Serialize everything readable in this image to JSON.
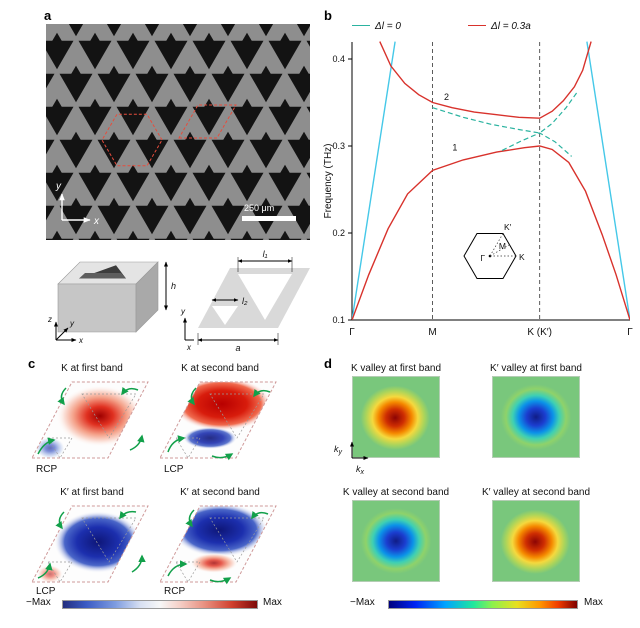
{
  "panels": {
    "a": "a",
    "b": "b",
    "c": "c",
    "d": "d"
  },
  "panel_a": {
    "scale_bar_label": "250 μm",
    "axis_x": "x",
    "axis_y": "y",
    "box": {
      "h": "h",
      "x": "x",
      "y": "y",
      "z": "z"
    },
    "cell": {
      "l1": "l₁",
      "l2": "l₂",
      "a": "a",
      "x": "x",
      "y": "y"
    }
  },
  "chart_data": {
    "type": "line",
    "title": "",
    "xlabel": "",
    "ylabel": "Frequency (THz)",
    "ylim": [
      0.1,
      0.42
    ],
    "y_ticks": [
      0.1,
      0.2,
      0.3,
      0.4
    ],
    "x_ticks": [
      {
        "pos": 0,
        "label": "Γ"
      },
      {
        "pos": 0.29,
        "label": "M",
        "dashed": true
      },
      {
        "pos": 0.675,
        "label": "K (K′)",
        "dashed": true
      },
      {
        "pos": 1,
        "label": "Γ"
      }
    ],
    "legend": [
      {
        "label": "Δl = 0",
        "color": "#2bb3a0",
        "style": "dashed"
      },
      {
        "label": "Δl = 0.3a",
        "color": "#d8322c",
        "style": "solid"
      }
    ],
    "series": [
      {
        "name": "light-line-left",
        "color": "#45c8e8",
        "style": "solid",
        "points": [
          [
            0,
            0.1
          ],
          [
            0.155,
            0.42
          ]
        ]
      },
      {
        "name": "light-line-right",
        "color": "#45c8e8",
        "style": "solid",
        "points": [
          [
            1,
            0.1
          ],
          [
            0.845,
            0.42
          ]
        ]
      },
      {
        "name": "band1-dl-0.3a",
        "color": "#d8322c",
        "style": "solid",
        "points": [
          [
            0,
            0.1
          ],
          [
            0.06,
            0.152
          ],
          [
            0.13,
            0.205
          ],
          [
            0.2,
            0.245
          ],
          [
            0.29,
            0.272
          ],
          [
            0.4,
            0.284
          ],
          [
            0.52,
            0.293
          ],
          [
            0.62,
            0.298
          ],
          [
            0.675,
            0.3
          ],
          [
            0.72,
            0.296
          ],
          [
            0.78,
            0.281
          ],
          [
            0.84,
            0.248
          ],
          [
            0.9,
            0.198
          ],
          [
            0.95,
            0.152
          ],
          [
            1,
            0.1
          ]
        ]
      },
      {
        "name": "band2-dl-0.3a",
        "color": "#d8322c",
        "style": "solid",
        "points": [
          [
            0.1,
            0.42
          ],
          [
            0.14,
            0.392
          ],
          [
            0.19,
            0.372
          ],
          [
            0.24,
            0.359
          ],
          [
            0.29,
            0.35
          ],
          [
            0.36,
            0.344
          ],
          [
            0.44,
            0.339
          ],
          [
            0.52,
            0.336
          ],
          [
            0.6,
            0.333
          ],
          [
            0.675,
            0.332
          ],
          [
            0.72,
            0.34
          ],
          [
            0.76,
            0.352
          ],
          [
            0.8,
            0.368
          ],
          [
            0.83,
            0.387
          ],
          [
            0.86,
            0.42
          ]
        ]
      },
      {
        "name": "band-upper-dl-0",
        "color": "#2bb3a0",
        "style": "dashed",
        "points": [
          [
            0.29,
            0.344
          ],
          [
            0.4,
            0.333
          ],
          [
            0.5,
            0.325
          ],
          [
            0.6,
            0.319
          ],
          [
            0.675,
            0.315
          ],
          [
            0.72,
            0.326
          ],
          [
            0.77,
            0.344
          ],
          [
            0.81,
            0.362
          ]
        ]
      },
      {
        "name": "band-lower-dl-0",
        "color": "#2bb3a0",
        "style": "dashed",
        "points": [
          [
            0.54,
            0.295
          ],
          [
            0.61,
            0.306
          ],
          [
            0.675,
            0.315
          ],
          [
            0.73,
            0.305
          ],
          [
            0.79,
            0.288
          ]
        ]
      }
    ],
    "annotations": [
      {
        "text": "1",
        "x": 0.37,
        "y": 0.295
      },
      {
        "text": "2",
        "x": 0.34,
        "y": 0.353
      }
    ],
    "inset": {
      "labels": {
        "gamma": "Γ",
        "m": "M",
        "k": "K",
        "kp": "K′"
      }
    }
  },
  "panel_c": {
    "cells": [
      {
        "title": "K at first band",
        "pol": "RCP"
      },
      {
        "title": "K at second band",
        "pol": "LCP"
      },
      {
        "title": "K′ at first band",
        "pol": "LCP"
      },
      {
        "title": "K′ at second band",
        "pol": "RCP"
      }
    ],
    "colorbar": {
      "min_label": "−Max",
      "max_label": "Max"
    }
  },
  "panel_d": {
    "cells": [
      {
        "title": "K valley at first band",
        "blob": "red"
      },
      {
        "title": "K′ valley at first band",
        "blob": "blue"
      },
      {
        "title": "K valley at second band",
        "blob": "blue"
      },
      {
        "title": "K′ valley at second band",
        "blob": "red"
      }
    ],
    "axes": {
      "k": "k",
      "x": "x",
      "y": "y"
    },
    "colorbar": {
      "min_label": "−Max",
      "max_label": "Max"
    }
  }
}
